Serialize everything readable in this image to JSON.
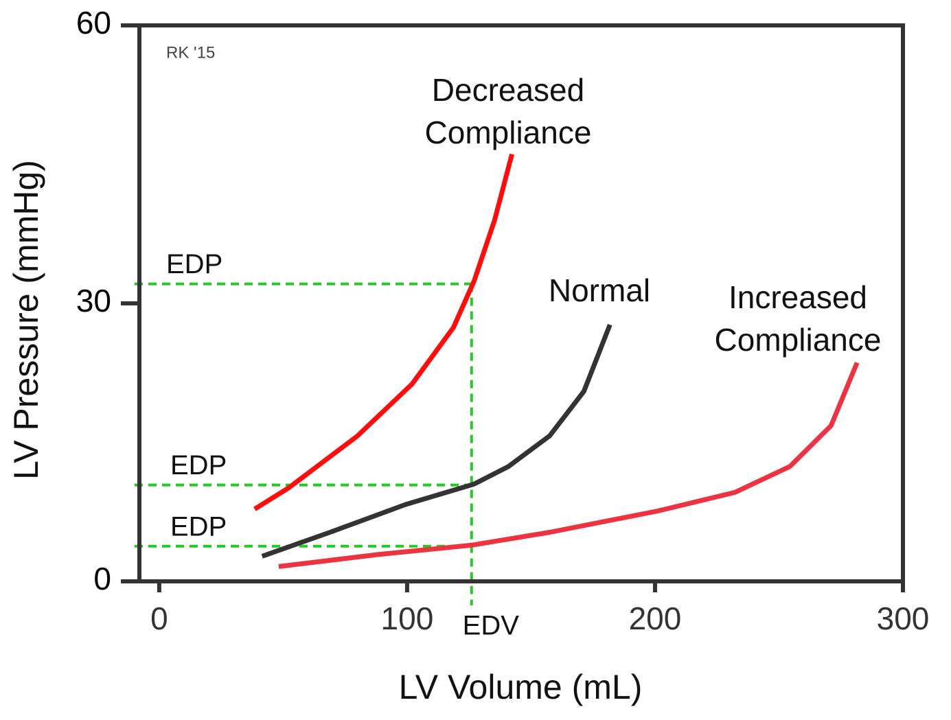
{
  "chart_data": {
    "type": "line",
    "xlabel": "LV Volume (mL)",
    "ylabel": "LV Pressure (mmHg)",
    "credit": "RK '15",
    "xlim": [
      -8,
      300
    ],
    "ylim": [
      0,
      60
    ],
    "xticks": [
      0,
      100,
      200,
      300
    ],
    "yticks": [
      0,
      30,
      60
    ],
    "series": [
      {
        "name": "Decreased Compliance",
        "color": "#ff0d0d",
        "x": [
          38.5,
          52.3,
          80,
          102,
          118.7,
          127,
          135.3,
          142.3
        ],
        "values": [
          7.8,
          10.1,
          15.7,
          21.3,
          27.4,
          32.4,
          39,
          46.1
        ]
      },
      {
        "name": "Normal",
        "color": "#333333",
        "x": [
          41.5,
          68.9,
          99.4,
          127,
          140.9,
          157.5,
          171.3,
          181.8
        ],
        "values": [
          2.7,
          5.3,
          8.3,
          10.5,
          12.4,
          15.7,
          20.5,
          27.7
        ]
      },
      {
        "name": "Increased Compliance",
        "color": "#ee3340",
        "x": [
          48.2,
          88.3,
          125.7,
          157.5,
          201.2,
          232.2,
          254.4,
          271,
          281.5
        ],
        "values": [
          1.6,
          2.9,
          3.9,
          5.3,
          7.6,
          9.6,
          12.4,
          16.8,
          23.6
        ]
      }
    ],
    "reference_color": "#22cc22",
    "edp": [
      {
        "label": "EDP",
        "value": 32.1
      },
      {
        "label": "EDP",
        "value": 10.4
      },
      {
        "label": "EDP",
        "value": 3.8
      }
    ],
    "edv": {
      "label": "EDV",
      "value": 126
    }
  }
}
